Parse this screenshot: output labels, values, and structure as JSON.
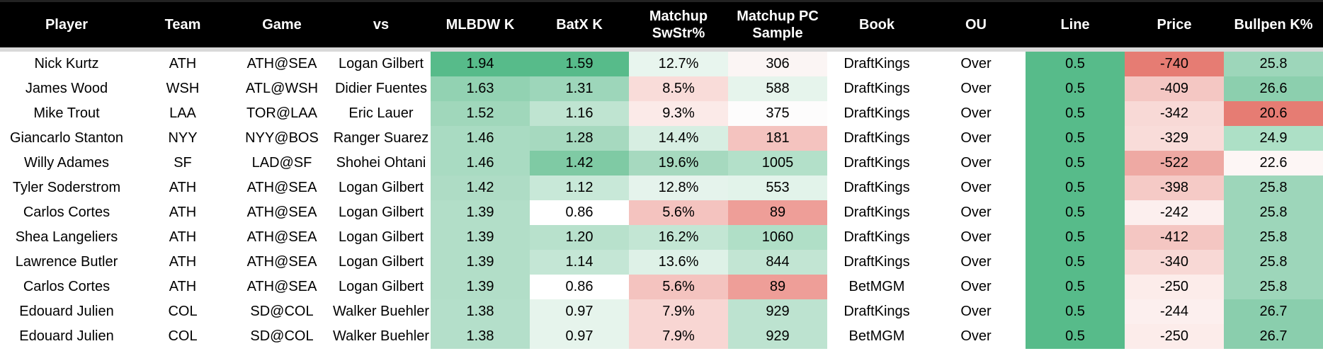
{
  "table": {
    "columns": [
      "Player",
      "Team",
      "Game",
      "vs",
      "MLBDW K",
      "BatX K",
      "Matchup SwStr%",
      "Matchup PC Sample",
      "Book",
      "OU",
      "Line",
      "Price",
      "Bullpen K%"
    ],
    "rows": [
      [
        "Nick Kurtz",
        "ATH",
        "ATH@SEA",
        "Logan Gilbert",
        "1.94",
        "1.59",
        "12.7%",
        "306",
        "DraftKings",
        "Over",
        "0.5",
        "-740",
        "25.8"
      ],
      [
        "James Wood",
        "WSH",
        "ATL@WSH",
        "Didier Fuentes",
        "1.63",
        "1.31",
        "8.5%",
        "588",
        "DraftKings",
        "Over",
        "0.5",
        "-409",
        "26.6"
      ],
      [
        "Mike Trout",
        "LAA",
        "TOR@LAA",
        "Eric Lauer",
        "1.52",
        "1.16",
        "9.3%",
        "375",
        "DraftKings",
        "Over",
        "0.5",
        "-342",
        "20.6"
      ],
      [
        "Giancarlo Stanton",
        "NYY",
        "NYY@BOS",
        "Ranger Suarez",
        "1.46",
        "1.28",
        "14.4%",
        "181",
        "DraftKings",
        "Over",
        "0.5",
        "-329",
        "24.9"
      ],
      [
        "Willy Adames",
        "SF",
        "LAD@SF",
        "Shohei Ohtani",
        "1.46",
        "1.42",
        "19.6%",
        "1005",
        "DraftKings",
        "Over",
        "0.5",
        "-522",
        "22.6"
      ],
      [
        "Tyler Soderstrom",
        "ATH",
        "ATH@SEA",
        "Logan Gilbert",
        "1.42",
        "1.12",
        "12.8%",
        "553",
        "DraftKings",
        "Over",
        "0.5",
        "-398",
        "25.8"
      ],
      [
        "Carlos Cortes",
        "ATH",
        "ATH@SEA",
        "Logan Gilbert",
        "1.39",
        "0.86",
        "5.6%",
        "89",
        "DraftKings",
        "Over",
        "0.5",
        "-242",
        "25.8"
      ],
      [
        "Shea Langeliers",
        "ATH",
        "ATH@SEA",
        "Logan Gilbert",
        "1.39",
        "1.20",
        "16.2%",
        "1060",
        "DraftKings",
        "Over",
        "0.5",
        "-412",
        "25.8"
      ],
      [
        "Lawrence Butler",
        "ATH",
        "ATH@SEA",
        "Logan Gilbert",
        "1.39",
        "1.14",
        "13.6%",
        "844",
        "DraftKings",
        "Over",
        "0.5",
        "-340",
        "25.8"
      ],
      [
        "Carlos Cortes",
        "ATH",
        "ATH@SEA",
        "Logan Gilbert",
        "1.39",
        "0.86",
        "5.6%",
        "89",
        "BetMGM",
        "Over",
        "0.5",
        "-250",
        "25.8"
      ],
      [
        "Edouard Julien",
        "COL",
        "SD@COL",
        "Walker Buehler",
        "1.38",
        "0.97",
        "7.9%",
        "929",
        "DraftKings",
        "Over",
        "0.5",
        "-244",
        "26.7"
      ],
      [
        "Edouard Julien",
        "COL",
        "SD@COL",
        "Walker Buehler",
        "1.38",
        "0.97",
        "7.9%",
        "929",
        "BetMGM",
        "Over",
        "0.5",
        "-250",
        "26.7"
      ]
    ],
    "fills": [
      [
        null,
        null,
        null,
        null,
        "#57bb8a",
        "#57bb8a",
        "#e8f5ee",
        "#fbf5f4",
        null,
        null,
        "#57bb8a",
        "#e67c73",
        "#9dd6ba"
      ],
      [
        null,
        null,
        null,
        null,
        "#92d2b2",
        "#9dd6ba",
        "#f9dcd9",
        "#e6f4ec",
        null,
        null,
        "#57bb8a",
        "#f4c7c3",
        "#8ccfae"
      ],
      [
        null,
        null,
        null,
        null,
        "#a0d7bb",
        "#bfe4d1",
        "#fbeae8",
        "#fdfcfc",
        null,
        null,
        "#57bb8a",
        "#f8d9d6",
        "#e67c73"
      ],
      [
        null,
        null,
        null,
        null,
        "#a9dbc2",
        "#a6d9bf",
        "#d7eee2",
        "#f4c3bf",
        null,
        null,
        "#57bb8a",
        "#f9dcd9",
        "#ade0c6"
      ],
      [
        null,
        null,
        null,
        null,
        "#a9dbc2",
        "#7fcaa4",
        "#a6d9bf",
        "#b3e0c9",
        null,
        null,
        "#57bb8a",
        "#eea9a3",
        "#fdf6f5"
      ],
      [
        null,
        null,
        null,
        null,
        "#aedcc5",
        "#c8e8d8",
        "#e5f3ec",
        "#e2f3ea",
        null,
        null,
        "#57bb8a",
        "#f5cac6",
        "#9dd6ba"
      ],
      [
        null,
        null,
        null,
        null,
        "#b2dec8",
        "#ffffff",
        "#f4c3bf",
        "#ee9e98",
        null,
        null,
        "#57bb8a",
        "#fcefee",
        "#9dd6ba"
      ],
      [
        null,
        null,
        null,
        null,
        "#b2dec8",
        "#b8e1cc",
        "#c3e6d4",
        "#b0dfc7",
        null,
        null,
        "#57bb8a",
        "#f4c6c2",
        "#9dd6ba"
      ],
      [
        null,
        null,
        null,
        null,
        "#b2dec8",
        "#c4e6d5",
        "#def1e7",
        "#c2e5d3",
        null,
        null,
        "#57bb8a",
        "#f8d8d5",
        "#9dd6ba"
      ],
      [
        null,
        null,
        null,
        null,
        "#b2dec8",
        "#ffffff",
        "#f4c3bf",
        "#ee9e98",
        null,
        null,
        "#57bb8a",
        "#fcecea",
        "#9dd6ba"
      ],
      [
        null,
        null,
        null,
        null,
        "#b4dfca",
        "#e6f4ec",
        "#f8d6d3",
        "#bde3d0",
        null,
        null,
        "#57bb8a",
        "#fcefee",
        "#8acead"
      ],
      [
        null,
        null,
        null,
        null,
        "#b4dfca",
        "#e6f4ec",
        "#f8d6d3",
        "#bde3d0",
        null,
        null,
        "#57bb8a",
        "#fcecea",
        "#8acead"
      ]
    ]
  }
}
